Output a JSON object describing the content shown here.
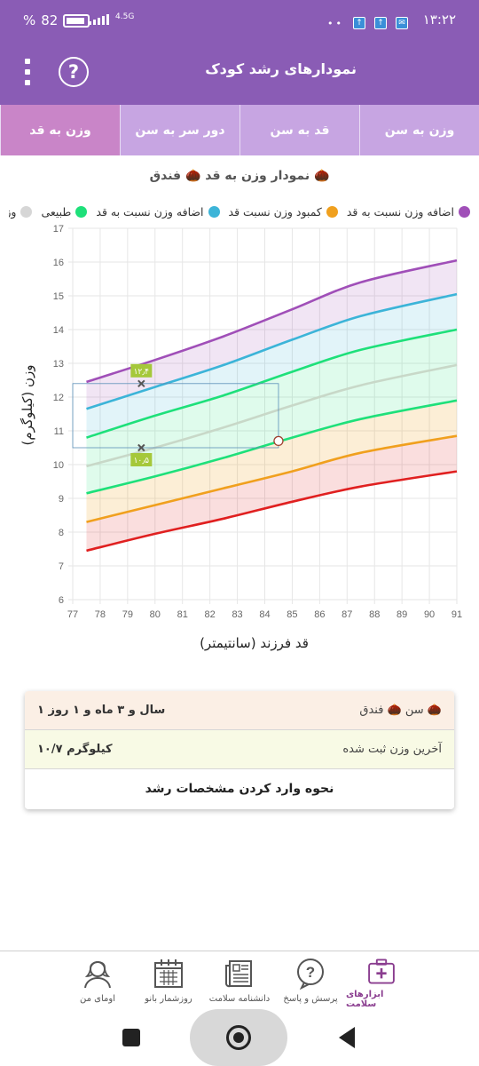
{
  "status": {
    "time": "۱۳:۲۲",
    "battery": "82",
    "battery_percent_sign": "%",
    "network": "4.5G"
  },
  "appbar": {
    "title": "نمودارهای رشد کودک"
  },
  "tabs": [
    {
      "label": "وزن به سن",
      "active": false
    },
    {
      "label": "قد به سن",
      "active": false
    },
    {
      "label": "دور سر به سن",
      "active": false
    },
    {
      "label": "وزن به قد",
      "active": true
    }
  ],
  "chart_title": "نمودار وزن به قد 🌰 فندق 🌰",
  "legend": [
    {
      "label": "وزن میانگین",
      "color": "#d6d6d6"
    },
    {
      "label": "طبیعی",
      "color": "#1ee07a"
    },
    {
      "label": "اضافه وزن نسبت به قد",
      "color": "#3cb4d8"
    },
    {
      "label": "کمبود وزن نسبت قد",
      "color": "#f0a01e"
    },
    {
      "label": "اضافه وزن نسبت به قد",
      "color": "#a04fb8"
    }
  ],
  "chart_data": {
    "type": "area",
    "xlabel": "قد فرزند (سانتیمتر)",
    "ylabel": "وزن (کیلوگرم)",
    "x_ticks": [
      77,
      78,
      79,
      80,
      81,
      82,
      83,
      84,
      85,
      86,
      87,
      88,
      89,
      90,
      91
    ],
    "y_ticks": [
      6,
      7,
      8,
      9,
      10,
      11,
      12,
      13,
      14,
      15,
      16,
      17
    ],
    "xlim": [
      77,
      91
    ],
    "ylim": [
      6,
      17
    ],
    "grid": true,
    "x": [
      77.5,
      80,
      82.5,
      85,
      87.5,
      91
    ],
    "series": [
      {
        "color": "#a04fb8",
        "values": [
          12.45,
          13.1,
          13.8,
          14.6,
          15.4,
          16.05
        ]
      },
      {
        "color": "#3cb4d8",
        "values": [
          11.65,
          12.3,
          12.95,
          13.7,
          14.4,
          15.05
        ]
      },
      {
        "color": "#1ee07a",
        "values": [
          10.8,
          11.45,
          12.05,
          12.75,
          13.4,
          14.0
        ]
      },
      {
        "color": "#c8d8c8",
        "values": [
          9.95,
          10.5,
          11.1,
          11.75,
          12.35,
          12.95
        ]
      },
      {
        "color": "#1ee07a",
        "values": [
          9.15,
          9.65,
          10.2,
          10.8,
          11.35,
          11.9
        ]
      },
      {
        "color": "#f0a01e",
        "values": [
          8.3,
          8.8,
          9.3,
          9.8,
          10.35,
          10.85
        ]
      },
      {
        "color": "#e02020",
        "values": [
          7.45,
          7.95,
          8.4,
          8.9,
          9.35,
          9.8
        ]
      }
    ],
    "markers": [
      {
        "x": 79.5,
        "y": 12.4,
        "label": "۱۲٫۴"
      },
      {
        "x": 79.5,
        "y": 10.5,
        "label": "۱۰٫۵"
      }
    ],
    "current_point": {
      "x": 84.5,
      "y": 10.7
    }
  },
  "info": {
    "age_label": "سن 🌰 فندق 🌰",
    "age_value": "۱ سال و ۳ ماه و ۱ روز",
    "weight_label": "آخرین وزن ثبت شده",
    "weight_value": "۱۰/۷ کیلوگرم",
    "howto": "نحوه وارد کردن مشخصات رشد"
  },
  "bottom_nav": [
    {
      "label": "ابزارهای سلامت",
      "icon": "medical-kit-icon",
      "active": true
    },
    {
      "label": "پرسش و پاسخ",
      "icon": "question-bubble-icon",
      "active": false
    },
    {
      "label": "دانشنامه سلامت",
      "icon": "newspaper-icon",
      "active": false
    },
    {
      "label": "روزشمار بانو",
      "icon": "calendar-icon",
      "active": false
    },
    {
      "label": "اومای من",
      "icon": "user-avatar-icon",
      "active": false
    }
  ]
}
